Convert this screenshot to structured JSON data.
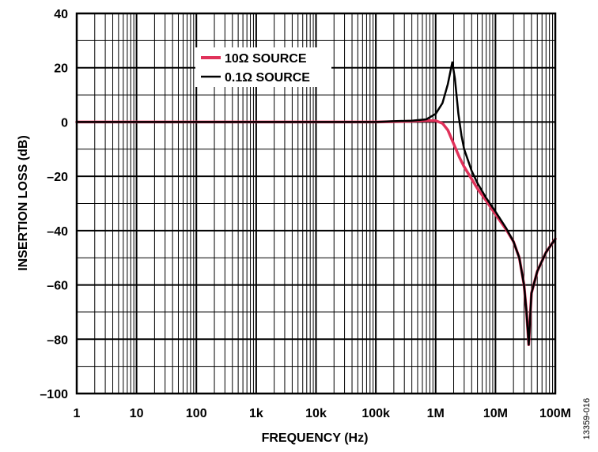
{
  "chart_data": {
    "type": "line",
    "xlabel": "FREQUENCY (Hz)",
    "ylabel": "INSERTION LOSS (dB)",
    "x_scale": "log",
    "xlim": [
      1,
      100000000
    ],
    "ylim": [
      -100,
      40
    ],
    "grid": true,
    "legend_position": "top-center",
    "x_ticks": [
      {
        "value": 1,
        "label": "1"
      },
      {
        "value": 10,
        "label": "10"
      },
      {
        "value": 100,
        "label": "100"
      },
      {
        "value": 1000,
        "label": "1k"
      },
      {
        "value": 10000,
        "label": "10k"
      },
      {
        "value": 100000,
        "label": "100k"
      },
      {
        "value": 1000000,
        "label": "1M"
      },
      {
        "value": 10000000,
        "label": "10M"
      },
      {
        "value": 100000000,
        "label": "100M"
      }
    ],
    "y_ticks": [
      {
        "value": 40,
        "label": "40"
      },
      {
        "value": 20,
        "label": "20"
      },
      {
        "value": 0,
        "label": "0"
      },
      {
        "value": -20,
        "label": "–20"
      },
      {
        "value": -40,
        "label": "–40"
      },
      {
        "value": -60,
        "label": "–60"
      },
      {
        "value": -80,
        "label": "–80"
      },
      {
        "value": -100,
        "label": "–100"
      }
    ],
    "series": [
      {
        "name": "10Ω SOURCE",
        "color": "#e0325a",
        "points": [
          [
            1,
            0
          ],
          [
            10,
            0
          ],
          [
            100,
            0
          ],
          [
            1000,
            0
          ],
          [
            10000,
            0
          ],
          [
            100000,
            0
          ],
          [
            300000,
            0.2
          ],
          [
            600000,
            0.5
          ],
          [
            1000000,
            0.5
          ],
          [
            1300000,
            -0.5
          ],
          [
            1600000,
            -3
          ],
          [
            2000000,
            -8
          ],
          [
            2500000,
            -13
          ],
          [
            3000000,
            -16.5
          ],
          [
            4000000,
            -21
          ],
          [
            5000000,
            -24.5
          ],
          [
            7000000,
            -29
          ],
          [
            10000000,
            -34
          ],
          [
            15000000,
            -39.5
          ],
          [
            20000000,
            -44
          ],
          [
            25000000,
            -50
          ],
          [
            30000000,
            -60
          ],
          [
            33000000,
            -70
          ],
          [
            35000000,
            -78
          ],
          [
            36000000,
            -82
          ],
          [
            37000000,
            -77
          ],
          [
            40000000,
            -63
          ],
          [
            50000000,
            -55
          ],
          [
            70000000,
            -48
          ],
          [
            100000000,
            -43
          ]
        ]
      },
      {
        "name": "0.1Ω SOURCE",
        "color": "#000000",
        "points": [
          [
            1,
            0
          ],
          [
            10,
            0
          ],
          [
            100,
            0
          ],
          [
            1000,
            0
          ],
          [
            10000,
            0
          ],
          [
            100000,
            0
          ],
          [
            200000,
            0.3
          ],
          [
            400000,
            0.5
          ],
          [
            700000,
            1
          ],
          [
            1000000,
            3
          ],
          [
            1300000,
            7
          ],
          [
            1600000,
            14
          ],
          [
            1900000,
            22
          ],
          [
            2100000,
            16
          ],
          [
            2400000,
            3
          ],
          [
            2700000,
            -5
          ],
          [
            3000000,
            -10
          ],
          [
            4000000,
            -18
          ],
          [
            5000000,
            -22.5
          ],
          [
            7000000,
            -28
          ],
          [
            10000000,
            -33
          ],
          [
            15000000,
            -39
          ],
          [
            20000000,
            -44
          ],
          [
            25000000,
            -50
          ],
          [
            30000000,
            -60
          ],
          [
            33000000,
            -70
          ],
          [
            35000000,
            -78
          ],
          [
            36000000,
            -82
          ],
          [
            37000000,
            -77
          ],
          [
            40000000,
            -63
          ],
          [
            50000000,
            -55
          ],
          [
            70000000,
            -48
          ],
          [
            100000000,
            -43
          ]
        ]
      }
    ]
  },
  "figure_id": "13359-016"
}
